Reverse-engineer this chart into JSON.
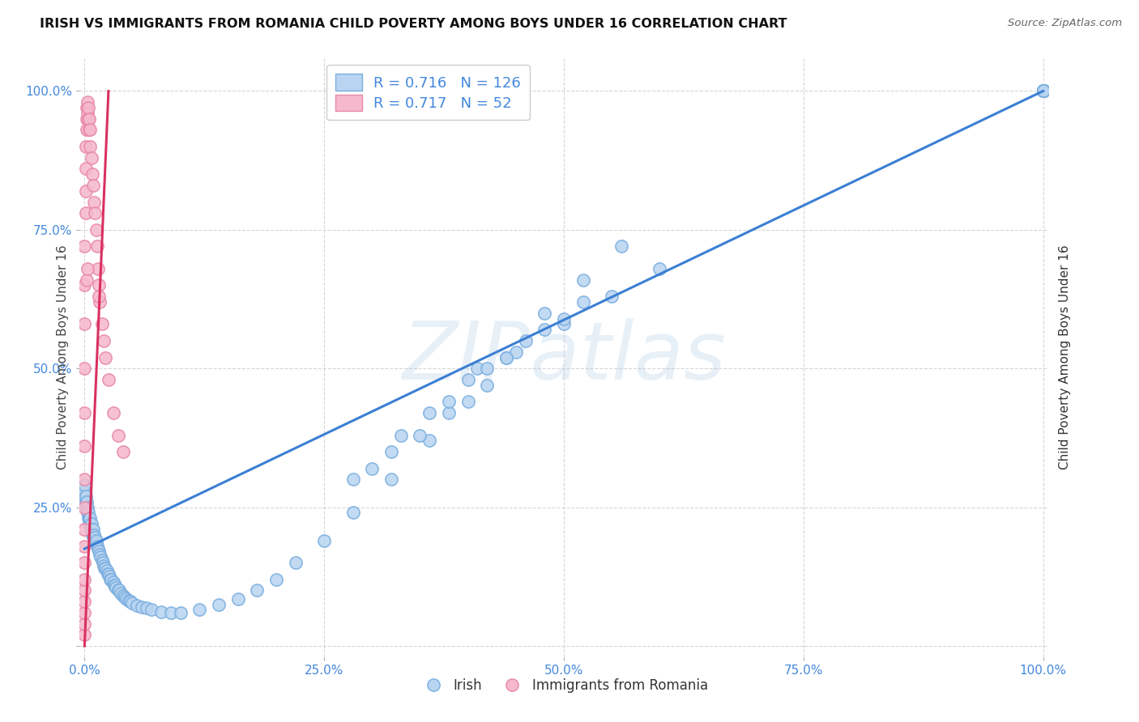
{
  "title": "IRISH VS IMMIGRANTS FROM ROMANIA CHILD POVERTY AMONG BOYS UNDER 16 CORRELATION CHART",
  "source": "Source: ZipAtlas.com",
  "ylabel": "Child Poverty Among Boys Under 16",
  "watermark": "ZIPatlas",
  "legend_irish_R": 0.716,
  "legend_irish_N": 126,
  "legend_romania_R": 0.717,
  "legend_romania_N": 52,
  "color_irish_face": "#b8d4f0",
  "color_irish_edge": "#7aaee0",
  "color_romania_face": "#f5b8cc",
  "color_romania_edge": "#e888a8",
  "line_color_irish": "#3b7fd4",
  "line_color_romania": "#d93060",
  "label_color": "#4488dd",
  "background_color": "#ffffff",
  "grid_color": "#cccccc",
  "irish_x": [
    0.0,
    0.0,
    0.0,
    0.001,
    0.001,
    0.002,
    0.002,
    0.003,
    0.003,
    0.004,
    0.004,
    0.005,
    0.005,
    0.006,
    0.006,
    0.007,
    0.007,
    0.008,
    0.008,
    0.009,
    0.009,
    0.01,
    0.01,
    0.011,
    0.011,
    0.012,
    0.012,
    0.013,
    0.014,
    0.015,
    0.016,
    0.017,
    0.018,
    0.019,
    0.02,
    0.021,
    0.022,
    0.023,
    0.024,
    0.025,
    0.026,
    0.027,
    0.028,
    0.03,
    0.031,
    0.032,
    0.033,
    0.035,
    0.036,
    0.038,
    0.04,
    0.042,
    0.044,
    0.046,
    0.048,
    0.05,
    0.055,
    0.06,
    0.065,
    0.07,
    0.08,
    0.09,
    0.1,
    0.12,
    0.14,
    0.16,
    0.18,
    0.2,
    0.22,
    0.25,
    0.28,
    0.32,
    0.36,
    0.4,
    0.44,
    0.48,
    0.52,
    0.56,
    0.38,
    0.42,
    0.46,
    0.3,
    0.35,
    0.28,
    0.45,
    0.5,
    0.55,
    0.6,
    0.32,
    0.38,
    0.33,
    0.41,
    0.48,
    0.52,
    0.36,
    0.44,
    0.5,
    0.4,
    0.42,
    1.0,
    1.0,
    1.0,
    1.0,
    1.0,
    1.0,
    1.0,
    1.0,
    1.0,
    1.0,
    1.0,
    1.0,
    1.0,
    1.0,
    1.0,
    1.0,
    1.0,
    1.0,
    1.0,
    1.0,
    1.0,
    1.0,
    1.0,
    1.0,
    1.0,
    1.0,
    1.0
  ],
  "irish_y": [
    0.27,
    0.28,
    0.29,
    0.26,
    0.27,
    0.25,
    0.26,
    0.24,
    0.25,
    0.23,
    0.24,
    0.22,
    0.23,
    0.22,
    0.23,
    0.21,
    0.22,
    0.2,
    0.21,
    0.2,
    0.21,
    0.195,
    0.2,
    0.19,
    0.195,
    0.185,
    0.19,
    0.18,
    0.175,
    0.17,
    0.165,
    0.16,
    0.155,
    0.15,
    0.145,
    0.14,
    0.14,
    0.135,
    0.13,
    0.13,
    0.125,
    0.12,
    0.12,
    0.115,
    0.11,
    0.11,
    0.105,
    0.1,
    0.1,
    0.095,
    0.09,
    0.088,
    0.085,
    0.082,
    0.08,
    0.078,
    0.073,
    0.07,
    0.068,
    0.065,
    0.062,
    0.06,
    0.06,
    0.065,
    0.075,
    0.085,
    0.1,
    0.12,
    0.15,
    0.19,
    0.24,
    0.3,
    0.37,
    0.44,
    0.52,
    0.6,
    0.66,
    0.72,
    0.42,
    0.47,
    0.55,
    0.32,
    0.38,
    0.3,
    0.53,
    0.58,
    0.63,
    0.68,
    0.35,
    0.44,
    0.38,
    0.5,
    0.57,
    0.62,
    0.42,
    0.52,
    0.59,
    0.48,
    0.5,
    1.0,
    1.0,
    1.0,
    1.0,
    1.0,
    1.0,
    1.0,
    1.0,
    1.0,
    1.0,
    1.0,
    1.0,
    1.0,
    1.0,
    1.0,
    1.0,
    1.0,
    1.0,
    1.0,
    1.0,
    1.0,
    1.0,
    1.0,
    1.0,
    1.0,
    1.0,
    1.0
  ],
  "romania_x": [
    0.0,
    0.0,
    0.0,
    0.0,
    0.0,
    0.0,
    0.0,
    0.0,
    0.0,
    0.0,
    0.0,
    0.0,
    0.0,
    0.0,
    0.0,
    0.0,
    0.0,
    0.001,
    0.001,
    0.001,
    0.001,
    0.002,
    0.002,
    0.002,
    0.003,
    0.003,
    0.004,
    0.004,
    0.005,
    0.005,
    0.006,
    0.006,
    0.007,
    0.008,
    0.009,
    0.01,
    0.011,
    0.012,
    0.013,
    0.014,
    0.015,
    0.016,
    0.018,
    0.02,
    0.022,
    0.025,
    0.03,
    0.035,
    0.04,
    0.002,
    0.003,
    0.015
  ],
  "romania_y": [
    0.02,
    0.04,
    0.06,
    0.08,
    0.1,
    0.12,
    0.15,
    0.18,
    0.21,
    0.25,
    0.3,
    0.36,
    0.42,
    0.5,
    0.58,
    0.65,
    0.72,
    0.78,
    0.82,
    0.86,
    0.9,
    0.93,
    0.95,
    0.97,
    0.96,
    0.98,
    0.95,
    0.97,
    0.93,
    0.95,
    0.9,
    0.93,
    0.88,
    0.85,
    0.83,
    0.8,
    0.78,
    0.75,
    0.72,
    0.68,
    0.65,
    0.62,
    0.58,
    0.55,
    0.52,
    0.48,
    0.42,
    0.38,
    0.35,
    0.66,
    0.68,
    0.63
  ],
  "irish_line_x": [
    0.0,
    1.0
  ],
  "irish_line_y": [
    0.175,
    1.0
  ],
  "romania_line_x": [
    0.0,
    0.025
  ],
  "romania_line_y": [
    0.0,
    1.0
  ],
  "xlim": [
    -0.005,
    1.005
  ],
  "ylim": [
    -0.02,
    1.06
  ]
}
